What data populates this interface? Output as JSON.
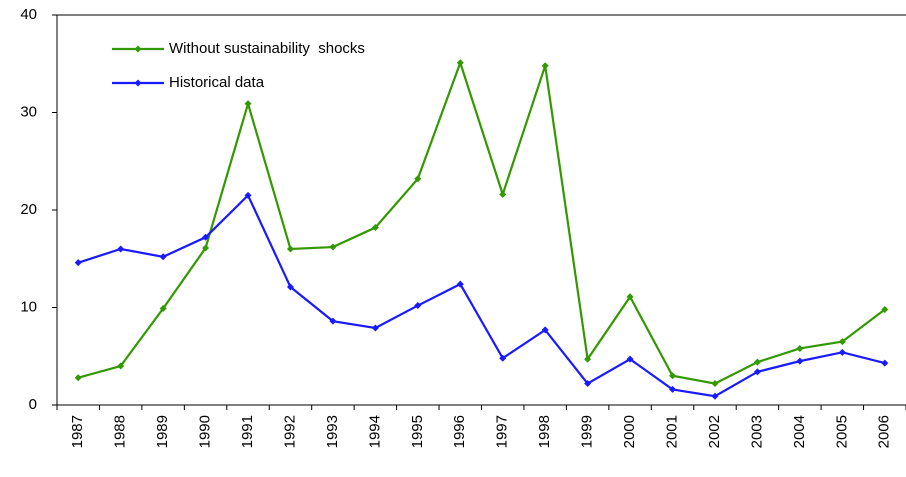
{
  "chart_data": {
    "type": "line",
    "categories": [
      "1987",
      "1988",
      "1989",
      "1990",
      "1991",
      "1992",
      "1993",
      "1994",
      "1995",
      "1996",
      "1997",
      "1998",
      "1999",
      "2000",
      "2001",
      "2002",
      "2003",
      "2004",
      "2005",
      "2006"
    ],
    "series": [
      {
        "name": "Without sustainability  shocks",
        "color": "#339900",
        "values": [
          2.8,
          4.0,
          9.9,
          16.1,
          30.9,
          16.0,
          16.2,
          18.2,
          23.2,
          35.1,
          21.6,
          34.8,
          4.7,
          11.1,
          3.0,
          2.2,
          4.4,
          5.8,
          6.5,
          9.8
        ]
      },
      {
        "name": "Historical data",
        "color": "#1a1aff",
        "values": [
          14.6,
          16.0,
          15.2,
          17.2,
          21.5,
          12.1,
          8.6,
          7.9,
          10.2,
          12.4,
          4.8,
          7.7,
          2.2,
          4.7,
          1.6,
          0.9,
          3.4,
          4.5,
          5.4,
          4.3
        ]
      }
    ],
    "ylim": [
      0,
      40
    ],
    "yticks": [
      0,
      10,
      20,
      30,
      40
    ],
    "legend": "upper left"
  }
}
